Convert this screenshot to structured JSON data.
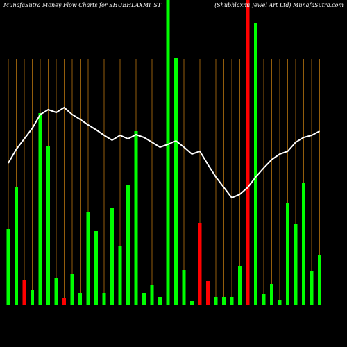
{
  "chart_data": {
    "type": "bar",
    "title": "MunafaSutra  Money Flow  Charts for SHUBHLAXMI_ST",
    "subtitle": "(Shubhlaxmi   Jewel Art Ltd) MunafaSutra.com",
    "values": [
      110,
      170,
      37,
      22,
      277,
      229,
      39,
      10,
      45,
      18,
      135,
      107,
      18,
      140,
      85,
      173,
      251,
      18,
      30,
      12,
      440,
      357,
      51,
      7,
      118,
      35,
      12,
      12,
      12,
      57,
      440,
      407,
      16,
      31,
      8,
      148,
      117,
      177,
      50,
      73
    ],
    "colors": [
      "#00ff00",
      "#00ff00",
      "#ff0000",
      "#00ff00",
      "#00ff00",
      "#00ff00",
      "#00ff00",
      "#ff0000",
      "#00ff00",
      "#00ff00",
      "#00ff00",
      "#00ff00",
      "#00ff00",
      "#00ff00",
      "#00ff00",
      "#00ff00",
      "#00ff00",
      "#00ff00",
      "#00ff00",
      "#00ff00",
      "#00ff00",
      "#00ff00",
      "#00ff00",
      "#00ff00",
      "#ff0000",
      "#ff0000",
      "#00ff00",
      "#00ff00",
      "#00ff00",
      "#00ff00",
      "#ff0000",
      "#00ff00",
      "#00ff00",
      "#00ff00",
      "#00ff00",
      "#00ff00",
      "#00ff00",
      "#00ff00",
      "#00ff00",
      "#00ff00"
    ],
    "line": {
      "color": "#ffffff",
      "values": [
        205,
        225,
        240,
        255,
        275,
        282,
        278,
        285,
        275,
        268,
        260,
        253,
        245,
        238,
        245,
        240,
        246,
        242,
        235,
        228,
        232,
        237,
        228,
        218,
        222,
        203,
        185,
        170,
        155,
        160,
        170,
        185,
        198,
        210,
        218,
        222,
        235,
        242,
        245,
        251
      ]
    },
    "ylim": [
      0,
      440
    ],
    "grid": true,
    "grid_color": "#b8750f"
  }
}
